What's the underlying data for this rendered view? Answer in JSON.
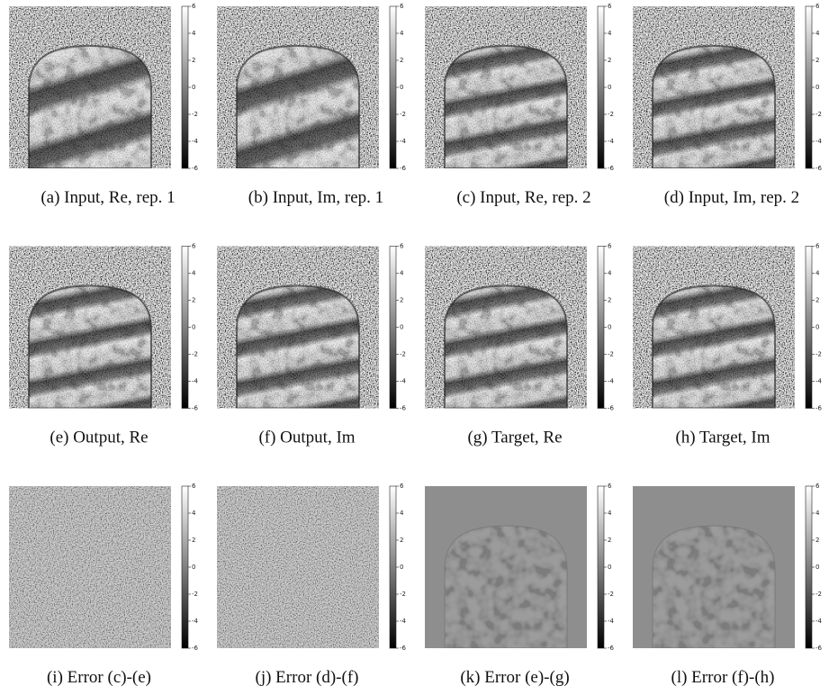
{
  "panels": [
    {
      "caption": "(a) Input, Re, rep. 1"
    },
    {
      "caption": "(b) Input, Im, rep. 1"
    },
    {
      "caption": "(c) Input, Re, rep. 2"
    },
    {
      "caption": "(d) Input, Im, rep. 2"
    },
    {
      "caption": "(e) Output, Re"
    },
    {
      "caption": "(f) Output, Im"
    },
    {
      "caption": "(g) Target, Re"
    },
    {
      "caption": "(h) Target, Im"
    },
    {
      "caption": "(i) Error (c)-(e)"
    },
    {
      "caption": "(j) Error (d)-(f)"
    },
    {
      "caption": "(k) Error (e)-(g)"
    },
    {
      "caption": "(l) Error (f)-(h)"
    }
  ],
  "colorbar": {
    "lim": [
      -6,
      6
    ],
    "ticks": [
      6,
      4,
      2,
      0,
      -2,
      -4,
      -6
    ]
  }
}
